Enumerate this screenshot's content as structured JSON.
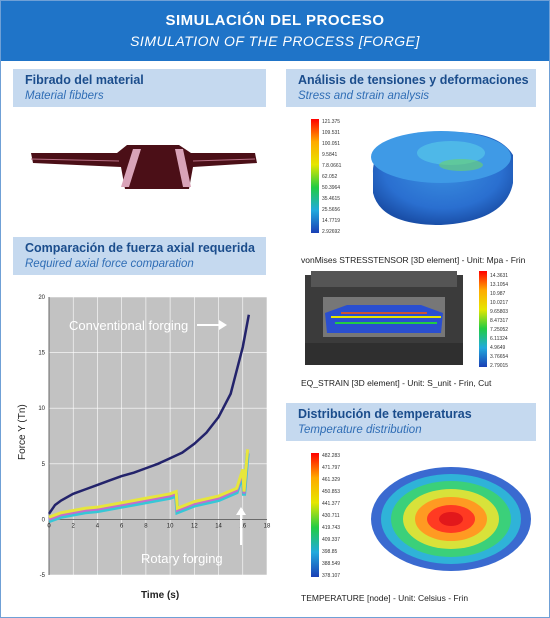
{
  "header": {
    "title": "SIMULACIÓN DEL PROCESO",
    "subtitle": "SIMULATION OF THE PROCESS [FORGE]"
  },
  "fibrado": {
    "title": "Fibrado del material",
    "subtitle": "Material fibbers"
  },
  "tensiones": {
    "title": "Análisis de tensiones y deformaciones",
    "subtitle": "Stress and strain analysis",
    "caption1": "vonMises STRESSTENSOR [3D element] - Unit: Mpa - Frin",
    "caption2": "EQ_STRAIN [3D element] - Unit: S_unit - Frin, Cut",
    "scale1": [
      "121.375",
      "109.531",
      "100.051",
      "9.5841",
      "7.8.0661",
      "62.052",
      "50.3964",
      "35.4615",
      "25.5656",
      "14.7719",
      "2.92692"
    ],
    "scale2": [
      "14.3631",
      "13.1054",
      "10.987",
      "10.0217",
      "9.65803",
      "8.47317",
      "7.25052",
      "6.11324",
      "4.9649",
      "3.76654",
      "2.79015"
    ]
  },
  "fuerza": {
    "title": "Comparación de fuerza axial requerida",
    "subtitle": "Required axial force comparation"
  },
  "temperaturas": {
    "title": "Distribución de temperaturas",
    "subtitle": "Temperature distribution",
    "caption": "TEMPERATURE [node] - Unit: Celsius - Frin",
    "scale": [
      "482.283",
      "471.797",
      "461.329",
      "450.853",
      "441.377",
      "430.711",
      "419.743",
      "409.337",
      "398.85",
      "388.549",
      "378.107"
    ]
  },
  "chart_data": {
    "type": "line",
    "xlabel": "Time (s)",
    "ylabel": "Force Y (Tn)",
    "xlim": [
      0,
      18
    ],
    "ylim": [
      -5,
      20
    ],
    "x_ticks": [
      "0",
      "2",
      "4",
      "6",
      "8",
      "10",
      "12",
      "14",
      "16",
      "18"
    ],
    "y_ticks": [
      "20",
      "15",
      "10",
      "5",
      "0",
      "-5"
    ],
    "grid": true,
    "annotations": [
      "Conventional forging",
      "Rotary forging"
    ],
    "colors": {
      "conventional": "#23236b",
      "rotary1": "#e6e63c",
      "rotary2": "#c46dcc",
      "rotary3": "#37c7d6",
      "plot_bg": "#c2c2c2"
    },
    "series": [
      {
        "name": "Conventional forging",
        "x": [
          0,
          0.5,
          1,
          2,
          3,
          4,
          5,
          6,
          7,
          8,
          9,
          10,
          11,
          12,
          13,
          14,
          15,
          16,
          16.5
        ],
        "values": [
          0.5,
          1.3,
          1.7,
          2.3,
          2.7,
          3.1,
          3.5,
          3.9,
          4.2,
          4.6,
          5.0,
          5.5,
          6.0,
          6.8,
          7.8,
          9.2,
          11.3,
          15.5,
          18.4
        ]
      },
      {
        "name": "Rotary forging",
        "x": [
          0,
          1,
          2,
          3,
          4,
          5,
          6,
          7,
          8,
          9,
          10,
          10.5,
          10.6,
          12,
          14,
          15.5,
          16,
          16.1,
          16.4
        ],
        "values": [
          0.2,
          0.6,
          0.8,
          1.0,
          1.1,
          1.3,
          1.5,
          1.7,
          1.9,
          2.1,
          2.3,
          2.5,
          1.0,
          1.6,
          2.1,
          2.8,
          4.5,
          2.5,
          6.3
        ]
      }
    ]
  }
}
